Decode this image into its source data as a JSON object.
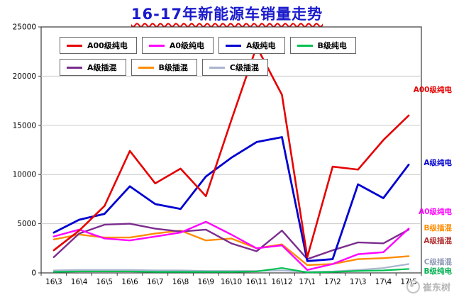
{
  "title": "16-17年新能源车销量走势",
  "watermark": {
    "text": "崔东树"
  },
  "chart_data": {
    "type": "line",
    "title": "16-17年新能源车销量走势",
    "xlabel": "",
    "ylabel": "",
    "ylim": [
      0,
      25000
    ],
    "ytick_step": 5000,
    "grid": true,
    "legend_position": "top-left-inside",
    "categories": [
      "16\\3",
      "16\\4",
      "16\\5",
      "16\\6",
      "16\\7",
      "16\\8",
      "16\\9",
      "16\\10",
      "16\\11",
      "16\\12",
      "17\\1",
      "17\\2",
      "17\\3",
      "17\\4",
      "17\\5"
    ],
    "series": [
      {
        "id": "c-phev",
        "name": "C级插混",
        "color": "#a9b4ce",
        "width": 2.2,
        "values": [
          250,
          300,
          300,
          300,
          250,
          250,
          200,
          200,
          200,
          250,
          100,
          150,
          300,
          500,
          900
        ]
      },
      {
        "id": "b-bev",
        "name": "B级纯电",
        "color": "#00c050",
        "width": 2.2,
        "values": [
          100,
          150,
          150,
          150,
          100,
          100,
          100,
          100,
          150,
          500,
          50,
          100,
          200,
          250,
          400
        ]
      },
      {
        "id": "b-phev",
        "name": "B级插混",
        "color": "#ff8c00",
        "width": 2.4,
        "values": [
          3400,
          3900,
          3600,
          3600,
          4000,
          4300,
          3300,
          3500,
          2500,
          2900,
          800,
          900,
          1400,
          1500,
          1700
        ]
      },
      {
        "id": "a-phev",
        "name": "A级插混",
        "color": "#7b2d8e",
        "width": 2.4,
        "values": [
          1600,
          4000,
          4900,
          5000,
          4500,
          4200,
          4400,
          3000,
          2200,
          4300,
          1400,
          2300,
          3100,
          3000,
          4400
        ]
      },
      {
        "id": "a0-bev",
        "name": "A0级纯电",
        "color": "#ff00ff",
        "width": 2.4,
        "values": [
          3700,
          4400,
          3500,
          3300,
          3700,
          4100,
          5200,
          3900,
          2500,
          2800,
          300,
          900,
          1900,
          2100,
          4500
        ]
      },
      {
        "id": "a-bev",
        "name": "A级纯电",
        "color": "#0000d0",
        "width": 2.8,
        "values": [
          4100,
          5400,
          6000,
          8800,
          7000,
          6500,
          9800,
          11700,
          13300,
          13800,
          1200,
          1400,
          9000,
          7600,
          11000
        ]
      },
      {
        "id": "a00-bev",
        "name": "A00级纯电",
        "color": "#e60000",
        "width": 2.6,
        "values": [
          2300,
          4300,
          6800,
          12400,
          9100,
          10600,
          7800,
          15500,
          23000,
          18100,
          1600,
          10800,
          10500,
          13500,
          16000
        ]
      }
    ],
    "legend_rows": [
      [
        "A00级纯电",
        "A0级纯电",
        "A级纯电",
        "B级纯电"
      ],
      [
        "A级插混",
        "B级插混",
        "C级插混"
      ]
    ],
    "right_labels": [
      {
        "id": "a00-bev",
        "text": "A00级纯电",
        "color": "#e60000",
        "value": 18700
      },
      {
        "id": "a-bev",
        "text": "A级纯电",
        "color": "#0000d0",
        "value": 11300
      },
      {
        "id": "a0-bev",
        "text": "A0级纯电",
        "color": "#ff00ff",
        "value": 6350
      },
      {
        "id": "b-phev",
        "text": "B级插混",
        "color": "#ff8c00",
        "value": 4700
      },
      {
        "id": "a-phev",
        "text": "A级插混",
        "color": "#b03030",
        "value": 3400
      },
      {
        "id": "c-phev",
        "text": "C级插混",
        "color": "#8f9ab8",
        "value": 1250
      },
      {
        "id": "b-bev",
        "text": "B级纯电",
        "color": "#00b050",
        "value": 320
      }
    ]
  }
}
